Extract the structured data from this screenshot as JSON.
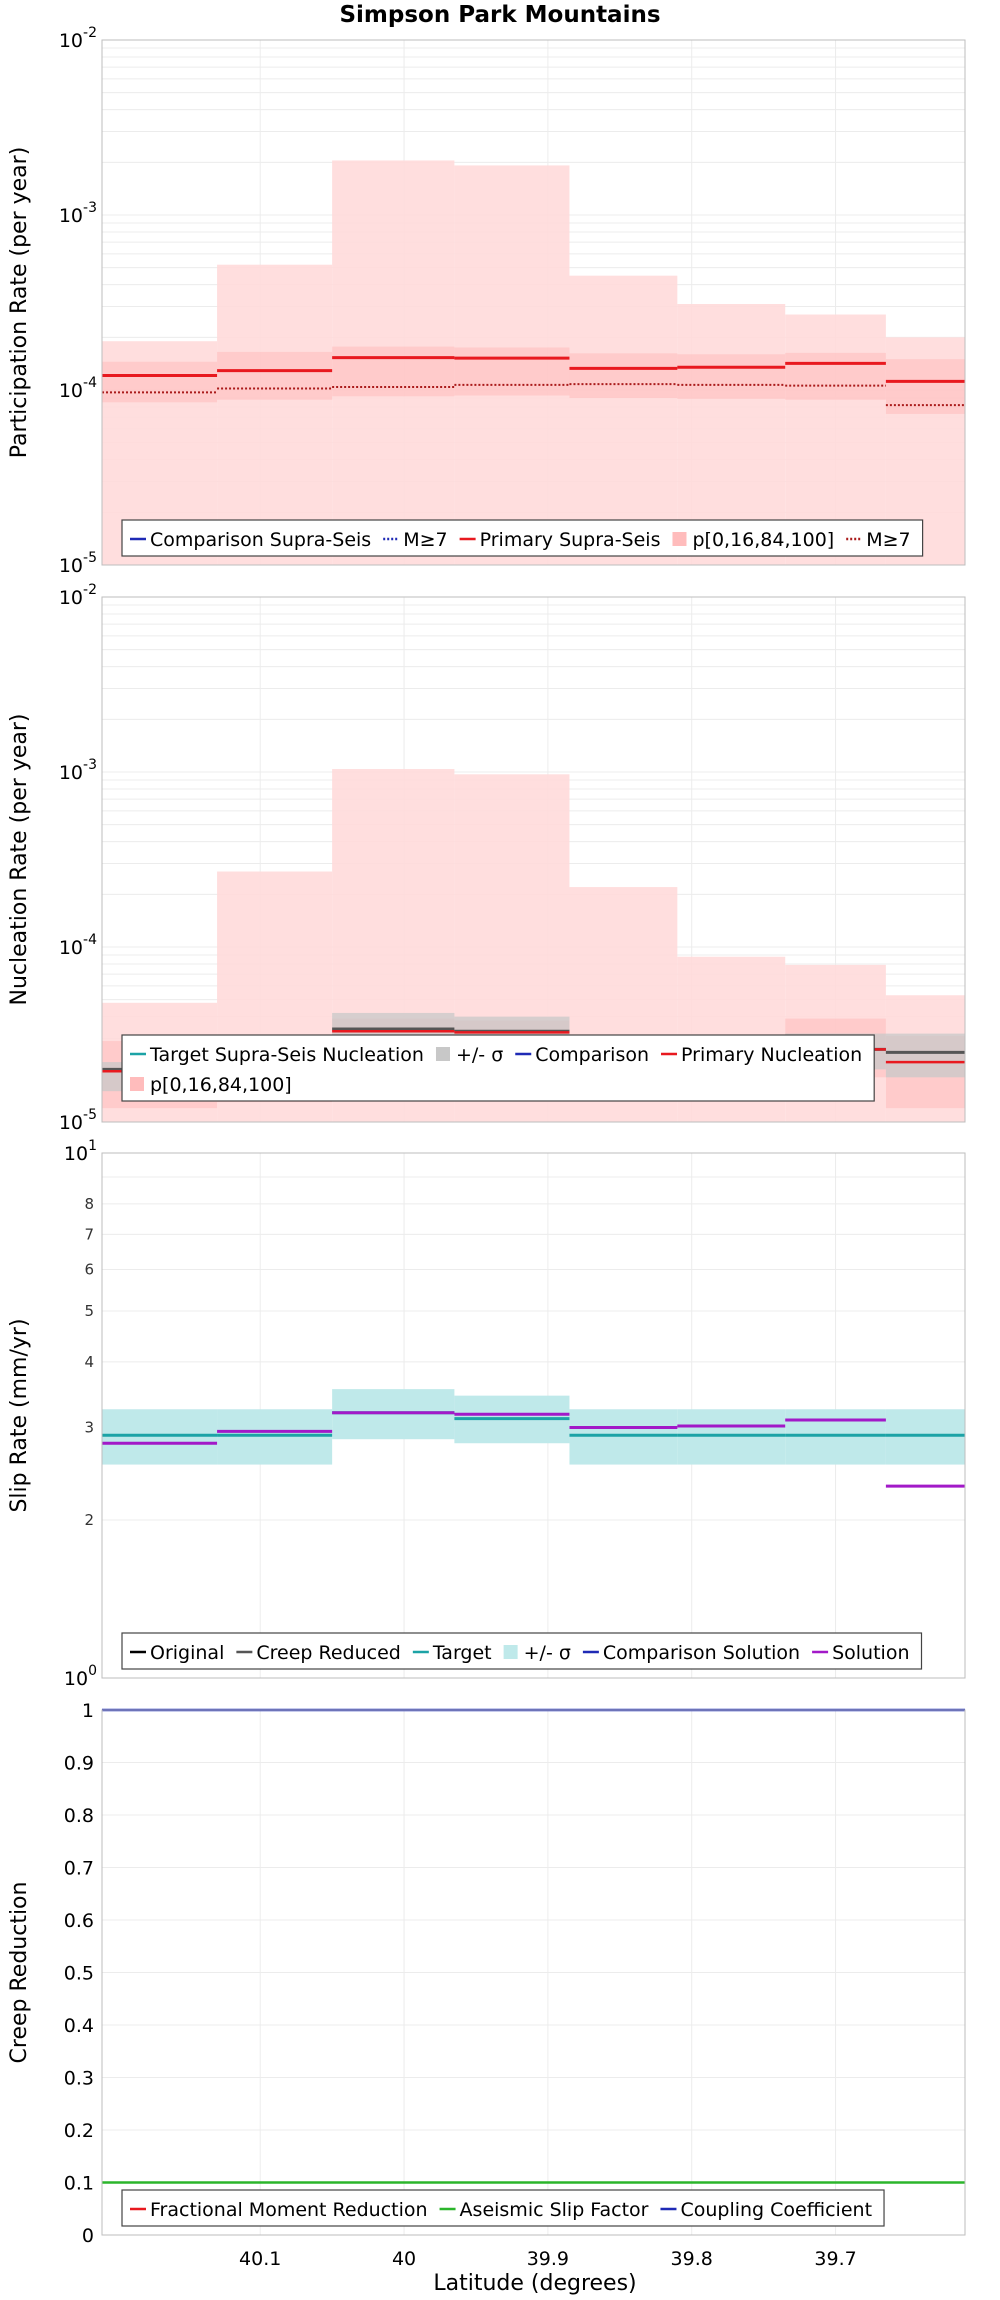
{
  "title": "Simpson Park Mountains",
  "xlabel": "Latitude (degrees)",
  "x_ticks": [
    "40.1",
    "40",
    "39.9",
    "39.8",
    "39.7"
  ],
  "colors": {
    "band_light": "#ffdada",
    "band_mid": "#ffbcbc",
    "primary_red": "#e8191f",
    "primary_dark": "#aa1b1b",
    "sigma_gray": "#c8c8c8",
    "creep_gray": "#555555",
    "target_teal": "#1ca3a6",
    "target_band": "#bfe9ea",
    "solution_purple": "#a219c8",
    "comparison_blue": "#1f2ab5",
    "aseismic_green": "#2bb52b"
  },
  "chart_data": [
    {
      "type": "line",
      "panel": "participation",
      "ylabel": "Participation Rate (per year)",
      "yscale": "log",
      "ylim": [
        1e-05,
        0.01
      ],
      "y_ticks": [
        {
          "base": "10",
          "exp": "-5"
        },
        {
          "base": "10",
          "exp": "-4"
        },
        {
          "base": "10",
          "exp": "-3"
        },
        {
          "base": "10",
          "exp": "-2"
        }
      ],
      "xlim": [
        40.21,
        39.61
      ],
      "bin_edges": [
        40.21,
        40.13,
        40.05,
        39.965,
        39.885,
        39.81,
        39.735,
        39.665,
        39.61
      ],
      "series": [
        {
          "name": "p[0,16,84,100]",
          "kind": "band",
          "lower": [
            1e-05,
            1e-05,
            1e-05,
            1e-05,
            1e-05,
            1e-05,
            1e-05,
            1e-05
          ],
          "upper": [
            0.00019,
            0.00052,
            0.00205,
            0.00192,
            0.00045,
            0.00031,
            0.00027,
            0.0002
          ]
        },
        {
          "name": "",
          "kind": "band16_84",
          "lower": [
            8.5e-05,
            8.8e-05,
            9.2e-05,
            9.3e-05,
            9e-05,
            8.9e-05,
            8.8e-05,
            7.3e-05
          ],
          "upper": [
            0.000145,
            0.000165,
            0.000177,
            0.000175,
            0.000162,
            0.00016,
            0.000163,
            0.00015
          ]
        },
        {
          "name": "Primary Supra-Seis",
          "values": [
            0.000121,
            0.000129,
            0.000153,
            0.000152,
            0.000133,
            0.000135,
            0.000142,
            0.000112
          ]
        },
        {
          "name": "M≥7",
          "values": [
            9.7e-05,
            0.000102,
            0.000104,
            0.000107,
            0.000108,
            0.000107,
            0.000106,
            8.2e-05
          ]
        }
      ],
      "legend": [
        {
          "label": "Comparison Supra-Seis",
          "style": "solid",
          "color": "#1f2ab5"
        },
        {
          "label": "M≥7",
          "style": "dotted",
          "color": "#1f2ab5"
        },
        {
          "label": "Primary Supra-Seis",
          "style": "solid",
          "color": "#e8191f"
        },
        {
          "label": "p[0,16,84,100]",
          "style": "band",
          "color": "#ffbcbc"
        },
        {
          "label": "M≥7",
          "style": "dotted",
          "color": "#aa1b1b"
        }
      ]
    },
    {
      "type": "line",
      "panel": "nucleation",
      "ylabel": "Nucleation Rate (per year)",
      "yscale": "log",
      "ylim": [
        1e-05,
        0.01
      ],
      "y_ticks": [
        {
          "base": "10",
          "exp": "-5"
        },
        {
          "base": "10",
          "exp": "-4"
        },
        {
          "base": "10",
          "exp": "-3"
        },
        {
          "base": "10",
          "exp": "-2"
        }
      ],
      "xlim": [
        40.21,
        39.61
      ],
      "bin_edges": [
        40.21,
        40.13,
        40.05,
        39.965,
        39.885,
        39.81,
        39.735,
        39.665,
        39.61
      ],
      "series": [
        {
          "name": "p[0,16,84,100]",
          "kind": "band",
          "lower": [
            1e-05,
            1e-05,
            1e-05,
            1e-05,
            1e-05,
            1e-05,
            1e-05,
            1e-05
          ],
          "upper": [
            4.8e-05,
            0.00027,
            0.00104,
            0.00097,
            0.00022,
            8.8e-05,
            7.9e-05,
            5.3e-05
          ]
        },
        {
          "name": "",
          "kind": "band16_84",
          "lower": [
            1.2e-05,
            1.3e-05,
            1.7e-05,
            1.7e-05,
            1.4e-05,
            1.6e-05,
            1.8e-05,
            1.2e-05
          ],
          "upper": [
            2.9e-05,
            3.1e-05,
            3.9e-05,
            3.8e-05,
            3e-05,
            3.1e-05,
            3.9e-05,
            3.1e-05
          ]
        },
        {
          "name": "+/- σ",
          "kind": "sigma",
          "lower": [
            1.5e-05,
            1.6e-05,
            2.8e-05,
            2.8e-05,
            1.6e-05,
            1.6e-05,
            2e-05,
            1.8e-05
          ],
          "upper": [
            2.2e-05,
            2.3e-05,
            4.2e-05,
            4e-05,
            2.3e-05,
            2.3e-05,
            3.2e-05,
            3.2e-05
          ]
        },
        {
          "name": "Target Supra-Seis Nucleation",
          "values": [
            2e-05,
            2.1e-05,
            3.4e-05,
            3.3e-05,
            2.1e-05,
            2.1e-05,
            2.6e-05,
            2.5e-05
          ]
        },
        {
          "name": "Primary Nucleation",
          "values": [
            1.95e-05,
            2.05e-05,
            3.3e-05,
            3.25e-05,
            2.05e-05,
            2.05e-05,
            2.6e-05,
            2.2e-05
          ]
        }
      ],
      "legend": [
        {
          "label": "Target Supra-Seis Nucleation",
          "style": "solid",
          "color": "#1ca3a6"
        },
        {
          "label": "+/- σ",
          "style": "band",
          "color": "#c8c8c8"
        },
        {
          "label": "Comparison",
          "style": "solid",
          "color": "#1f2ab5"
        },
        {
          "label": "Primary Nucleation",
          "style": "solid",
          "color": "#e8191f"
        },
        {
          "label": "p[0,16,84,100]",
          "style": "band",
          "color": "#ffbcbc"
        }
      ]
    },
    {
      "type": "line",
      "panel": "slip",
      "ylabel": "Slip Rate (mm/yr)",
      "yscale": "log",
      "ylim": [
        1,
        10
      ],
      "y_ticks_major": [
        {
          "base": "10",
          "exp": "0",
          "value": 1
        },
        {
          "base": "10",
          "exp": "1",
          "value": 10
        }
      ],
      "y_ticks_minor": [
        2,
        3,
        4,
        5,
        6,
        7,
        8
      ],
      "y_ticks_minor_labels": [
        "2",
        "3",
        "4",
        "5",
        "6",
        "7",
        "8"
      ],
      "xlim": [
        40.21,
        39.61
      ],
      "bin_edges": [
        40.21,
        40.13,
        40.05,
        39.965,
        39.885,
        39.81,
        39.735,
        39.665,
        39.61
      ],
      "series": [
        {
          "name": "+/- σ",
          "kind": "band",
          "lower": [
            2.55,
            2.55,
            2.85,
            2.8,
            2.55,
            2.55,
            2.55,
            2.55
          ],
          "upper": [
            3.25,
            3.25,
            3.55,
            3.45,
            3.25,
            3.25,
            3.25,
            3.25
          ]
        },
        {
          "name": "Target",
          "values": [
            2.9,
            2.9,
            3.2,
            3.12,
            2.9,
            2.9,
            2.9,
            2.9
          ]
        },
        {
          "name": "Solution",
          "values": [
            2.8,
            2.95,
            3.2,
            3.18,
            3.0,
            3.02,
            3.1,
            2.32
          ]
        }
      ],
      "legend": [
        {
          "label": "Original",
          "style": "solid",
          "color": "#000000"
        },
        {
          "label": "Creep Reduced",
          "style": "solid",
          "color": "#555555"
        },
        {
          "label": "Target",
          "style": "solid",
          "color": "#1ca3a6"
        },
        {
          "label": "+/- σ",
          "style": "band",
          "color": "#bfe9ea"
        },
        {
          "label": "Comparison Solution",
          "style": "solid",
          "color": "#1f2ab5"
        },
        {
          "label": "Solution",
          "style": "solid",
          "color": "#a219c8"
        }
      ]
    },
    {
      "type": "line",
      "panel": "creep",
      "ylabel": "Creep Reduction",
      "yscale": "linear",
      "ylim": [
        0,
        1
      ],
      "y_ticks": [
        "0",
        "0.1",
        "0.2",
        "0.3",
        "0.4",
        "0.5",
        "0.6",
        "0.7",
        "0.8",
        "0.9",
        "1"
      ],
      "xlim": [
        40.21,
        39.61
      ],
      "series": [
        {
          "name": "Coupling Coefficient",
          "value": 1.0
        },
        {
          "name": "Aseismic Slip Factor",
          "value": 0.1
        },
        {
          "name": "Fractional Moment Reduction",
          "value": 0.0
        }
      ],
      "legend": [
        {
          "label": "Fractional Moment Reduction",
          "style": "solid",
          "color": "#e8191f"
        },
        {
          "label": "Aseismic Slip Factor",
          "style": "solid",
          "color": "#2bb52b"
        },
        {
          "label": "Coupling Coefficient",
          "style": "solid",
          "color": "#1f2ab5"
        }
      ]
    }
  ]
}
